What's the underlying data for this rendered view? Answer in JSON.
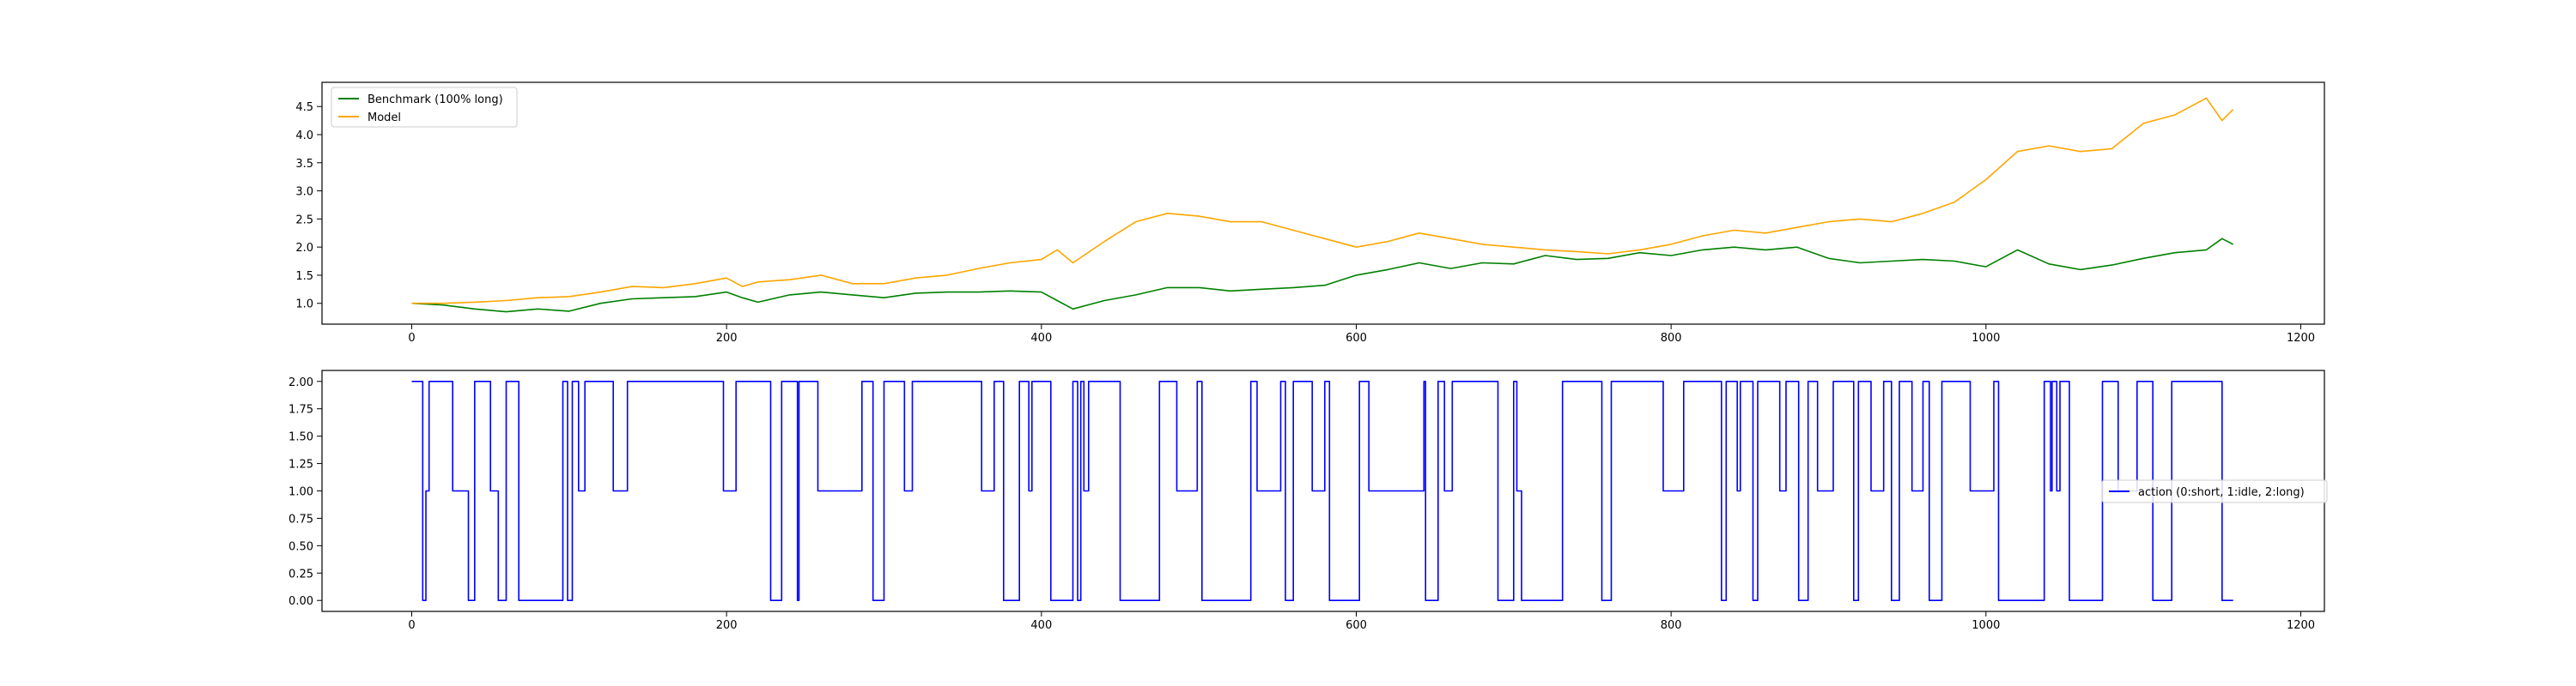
{
  "colors": {
    "benchmark": "#008000",
    "model": "#FFA500",
    "action": "#0000FF",
    "axes": "#000000",
    "legend_border": "#cccccc",
    "background": "#ffffff"
  },
  "chart_data": [
    {
      "type": "line",
      "title": "",
      "xlabel": "",
      "ylabel": "",
      "xlim": [
        -57,
        1215
      ],
      "ylim": [
        0.63,
        4.93
      ],
      "xticks": [
        0,
        200,
        400,
        600,
        800,
        1000,
        1200
      ],
      "yticks": [
        1.0,
        1.5,
        2.0,
        2.5,
        3.0,
        3.5,
        4.0,
        4.5
      ],
      "grid": false,
      "legend_position": "top-left",
      "series": [
        {
          "name": "Benchmark (100% long)",
          "color": "#008000",
          "x": [
            0,
            20,
            40,
            60,
            80,
            100,
            120,
            140,
            160,
            180,
            200,
            210,
            220,
            240,
            260,
            280,
            300,
            320,
            340,
            360,
            380,
            400,
            410,
            420,
            440,
            460,
            480,
            500,
            520,
            540,
            560,
            580,
            600,
            620,
            640,
            660,
            680,
            700,
            720,
            740,
            760,
            780,
            800,
            820,
            840,
            860,
            880,
            900,
            920,
            940,
            960,
            980,
            1000,
            1020,
            1040,
            1060,
            1080,
            1100,
            1120,
            1140,
            1150,
            1157
          ],
          "y": [
            1.0,
            0.97,
            0.9,
            0.85,
            0.9,
            0.86,
            1.0,
            1.08,
            1.1,
            1.12,
            1.2,
            1.1,
            1.02,
            1.15,
            1.2,
            1.15,
            1.1,
            1.18,
            1.2,
            1.2,
            1.22,
            1.2,
            1.05,
            0.9,
            1.05,
            1.15,
            1.28,
            1.28,
            1.22,
            1.25,
            1.28,
            1.32,
            1.5,
            1.6,
            1.72,
            1.62,
            1.72,
            1.7,
            1.85,
            1.78,
            1.8,
            1.9,
            1.85,
            1.95,
            2.0,
            1.95,
            2.0,
            1.8,
            1.72,
            1.75,
            1.78,
            1.75,
            1.65,
            1.95,
            1.7,
            1.6,
            1.68,
            1.8,
            1.9,
            1.95,
            2.15,
            2.05
          ]
        },
        {
          "name": "Model",
          "color": "#FFA500",
          "x": [
            0,
            20,
            40,
            60,
            80,
            100,
            120,
            140,
            160,
            180,
            200,
            210,
            220,
            240,
            260,
            280,
            300,
            320,
            340,
            360,
            380,
            400,
            410,
            420,
            440,
            460,
            480,
            500,
            520,
            540,
            560,
            580,
            600,
            620,
            640,
            660,
            680,
            700,
            720,
            740,
            760,
            780,
            800,
            820,
            840,
            860,
            880,
            900,
            920,
            940,
            960,
            980,
            1000,
            1020,
            1040,
            1060,
            1080,
            1100,
            1120,
            1140,
            1150,
            1157
          ],
          "y": [
            1.0,
            1.0,
            1.02,
            1.05,
            1.1,
            1.12,
            1.2,
            1.3,
            1.28,
            1.35,
            1.45,
            1.3,
            1.38,
            1.42,
            1.5,
            1.35,
            1.35,
            1.45,
            1.5,
            1.62,
            1.72,
            1.78,
            1.95,
            1.72,
            2.1,
            2.45,
            2.6,
            2.55,
            2.45,
            2.45,
            2.3,
            2.15,
            2.0,
            2.1,
            2.25,
            2.15,
            2.05,
            2.0,
            1.95,
            1.92,
            1.88,
            1.95,
            2.05,
            2.2,
            2.3,
            2.25,
            2.35,
            2.45,
            2.5,
            2.45,
            2.6,
            2.8,
            3.2,
            3.7,
            3.8,
            3.7,
            3.75,
            4.2,
            4.35,
            4.65,
            4.25,
            4.45
          ]
        }
      ]
    },
    {
      "type": "line",
      "title": "",
      "xlabel": "",
      "ylabel": "",
      "xlim": [
        -57,
        1215
      ],
      "ylim": [
        -0.1,
        2.1
      ],
      "xticks": [
        0,
        200,
        400,
        600,
        800,
        1000,
        1200
      ],
      "yticks": [
        0.0,
        0.25,
        0.5,
        0.75,
        1.0,
        1.25,
        1.5,
        1.75,
        2.0
      ],
      "ytick_labels": [
        "0.00",
        "0.25",
        "0.50",
        "0.75",
        "1.00",
        "1.25",
        "1.50",
        "1.75",
        "2.00"
      ],
      "grid": false,
      "legend_position": "center-right",
      "series": [
        {
          "name": "action (0:short, 1:idle, 2:long)",
          "color": "#0000FF",
          "drawstyle": "steps-post",
          "x": [
            0,
            7,
            9,
            11,
            26,
            36,
            40,
            50,
            55,
            60,
            68,
            96,
            99,
            102,
            106,
            110,
            128,
            137,
            198,
            206,
            228,
            235,
            245,
            246,
            258,
            286,
            293,
            300,
            313,
            318,
            362,
            370,
            376,
            386,
            392,
            394,
            406,
            420,
            423,
            425,
            427,
            430,
            450,
            475,
            486,
            499,
            502,
            533,
            537,
            552,
            555,
            560,
            572,
            580,
            583,
            602,
            608,
            643,
            644,
            652,
            656,
            661,
            690,
            700,
            702,
            705,
            731,
            756,
            762,
            795,
            808,
            832,
            835,
            842,
            844,
            852,
            855,
            869,
            873,
            881,
            887,
            893,
            903,
            916,
            919,
            927,
            935,
            940,
            945,
            953,
            960,
            964,
            972,
            990,
            1005,
            1008,
            1037,
            1041,
            1042,
            1045,
            1047,
            1053,
            1074,
            1084,
            1096,
            1106,
            1118,
            1150,
            1157
          ],
          "y": [
            2,
            0,
            1,
            2,
            1,
            0,
            2,
            1,
            0,
            2,
            0,
            2,
            0,
            2,
            1,
            2,
            1,
            2,
            1,
            2,
            0,
            2,
            0,
            2,
            1,
            2,
            0,
            2,
            1,
            2,
            1,
            2,
            0,
            2,
            1,
            2,
            0,
            2,
            0,
            2,
            1,
            2,
            0,
            2,
            1,
            2,
            0,
            2,
            1,
            2,
            0,
            2,
            1,
            2,
            0,
            2,
            1,
            2,
            0,
            2,
            1,
            2,
            0,
            2,
            1,
            0,
            2,
            0,
            2,
            1,
            2,
            0,
            2,
            1,
            2,
            0,
            2,
            1,
            2,
            0,
            2,
            1,
            2,
            0,
            2,
            1,
            2,
            0,
            2,
            1,
            2,
            0,
            2,
            1,
            2,
            0,
            2,
            1,
            2,
            1,
            2,
            0,
            2,
            1,
            2,
            0,
            2,
            0,
            0
          ]
        }
      ]
    }
  ]
}
